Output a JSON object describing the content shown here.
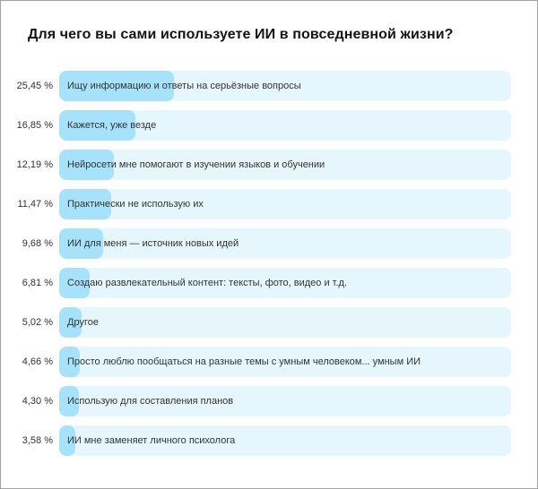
{
  "title": "Для чего вы сами используете ИИ в повседневной жизни?",
  "chart_data": {
    "type": "bar",
    "orientation": "horizontal",
    "title": "Для чего вы сами используете ИИ в повседневной жизни?",
    "xlabel": "",
    "ylabel": "",
    "unit": "%",
    "xlim": [
      0,
      100
    ],
    "grid": false,
    "legend": false,
    "categories": [
      "Ищу информацию и ответы на серьёзные вопросы",
      "Кажется, уже везде",
      "Нейросети мне помогают в изучении языков и обучении",
      "Практически не использую их",
      "ИИ для меня — источник новых идей",
      "Создаю развлекательный контент: тексты, фото, видео и т.д.",
      "Другое",
      "Просто люблю пообщаться на разные темы с умным человеком... умным ИИ",
      "Использую для составления планов",
      "ИИ мне заменяет личного психолога"
    ],
    "values": [
      25.45,
      16.85,
      12.19,
      11.47,
      9.68,
      6.81,
      5.02,
      4.66,
      4.3,
      3.58
    ],
    "value_labels": [
      "25,45 %",
      "16,85 %",
      "12,19 %",
      "11,47 %",
      "9,68 %",
      "6,81 %",
      "5,02 %",
      "4,66 %",
      "4,30 %",
      "3,58 %"
    ],
    "colors": {
      "bar_fill": "#A6E2FA",
      "bar_track": "#E6F6FD",
      "text": "#333333",
      "title": "#141414",
      "frame_border": "#A3A3A3"
    }
  }
}
